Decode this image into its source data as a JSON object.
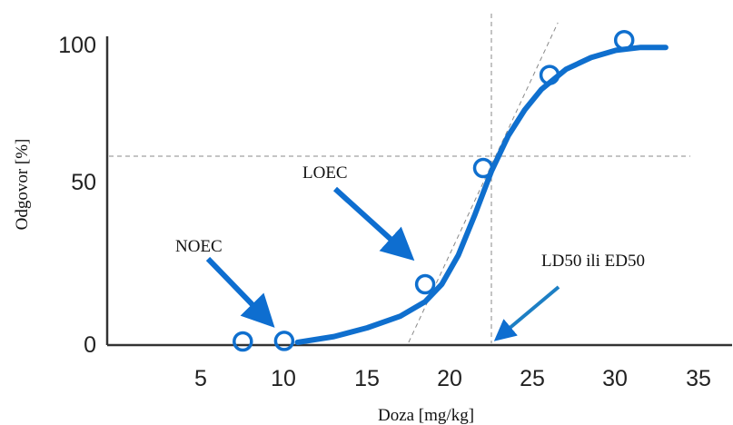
{
  "chart_data": {
    "type": "line",
    "xlabel": "Doza [mg/kg]",
    "ylabel": "Odgovor [%]",
    "xlim": [
      0,
      35
    ],
    "ylim": [
      0,
      100
    ],
    "x_ticks": [
      "5",
      "10",
      "15",
      "20",
      "25",
      "30",
      "35"
    ],
    "y_ticks": [
      "0",
      "50",
      "100"
    ],
    "grid": false,
    "legend": "none",
    "curve": {
      "x": [
        10.8,
        13,
        15,
        17,
        18.5,
        19.5,
        20.5,
        21.5,
        22.5,
        23.5,
        24.5,
        25.5,
        27,
        28.5,
        30,
        31.5,
        33
      ],
      "y": [
        0,
        2,
        5,
        9,
        14,
        20,
        30,
        44,
        59,
        71,
        80,
        87,
        94,
        98,
        100.5,
        101.5,
        101.5
      ]
    },
    "points": {
      "x": [
        7.5,
        10,
        18.5,
        22,
        26,
        30.5
      ],
      "y": [
        0.3,
        0.5,
        20,
        60,
        92,
        104
      ]
    },
    "reference_lines": {
      "horizontal_y": 62,
      "vertical_x": 22.3,
      "tangent": {
        "x": [
          17.5,
          26.5
        ],
        "y": [
          0,
          110
        ]
      }
    },
    "annotations": [
      {
        "text": "NOEC",
        "arrow_to": [
          9.7,
          6
        ]
      },
      {
        "text": "LOEC",
        "arrow_to": [
          17.6,
          28
        ]
      },
      {
        "text": "LD50 ili ED50",
        "arrow_to": [
          22.4,
          0.5
        ]
      }
    ],
    "colors": {
      "curve": "#0f6fce",
      "arrow": "#0e6ed0",
      "arrow_ld50": "#1d7fc4",
      "axis": "#333333",
      "dashed": "#888888"
    }
  }
}
